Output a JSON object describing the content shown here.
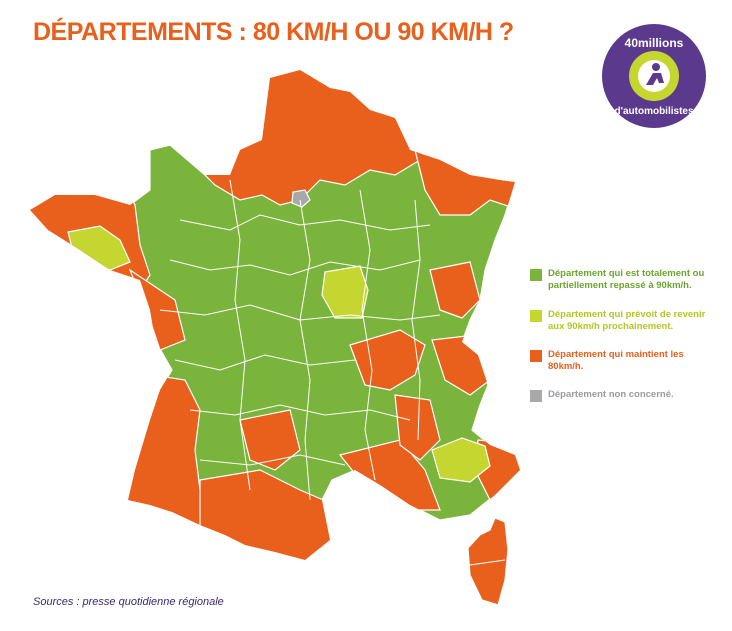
{
  "title": "DÉPARTEMENTS : 80 KM/H OU 90 KM/H ?",
  "logo": {
    "line1": "40millions",
    "line2": "d'automobilistes"
  },
  "colors": {
    "title": "#e8601c",
    "green": "#7ab43c",
    "lime": "#c6d630",
    "orange": "#e8601c",
    "grey": "#a8a8ac",
    "logo_purple": "#5b3a8e",
    "logo_green": "#c6d630"
  },
  "legend": [
    {
      "label": "Département qui est totalement ou partiellement repassé à 90km/h.",
      "color": "#7ab43c",
      "text_color": "#6aa62e"
    },
    {
      "label": "Département qui prévoit de revenir aux 90km/h prochainement.",
      "color": "#c6d630",
      "text_color": "#b5c520"
    },
    {
      "label": "Département qui maintient les 80km/h.",
      "color": "#e8601c",
      "text_color": "#e8601c"
    },
    {
      "label": "Département non concerné.",
      "color": "#a8a8ac",
      "text_color": "#9a9aa0"
    }
  ],
  "sources": "Sources : presse quotidienne régionale"
}
